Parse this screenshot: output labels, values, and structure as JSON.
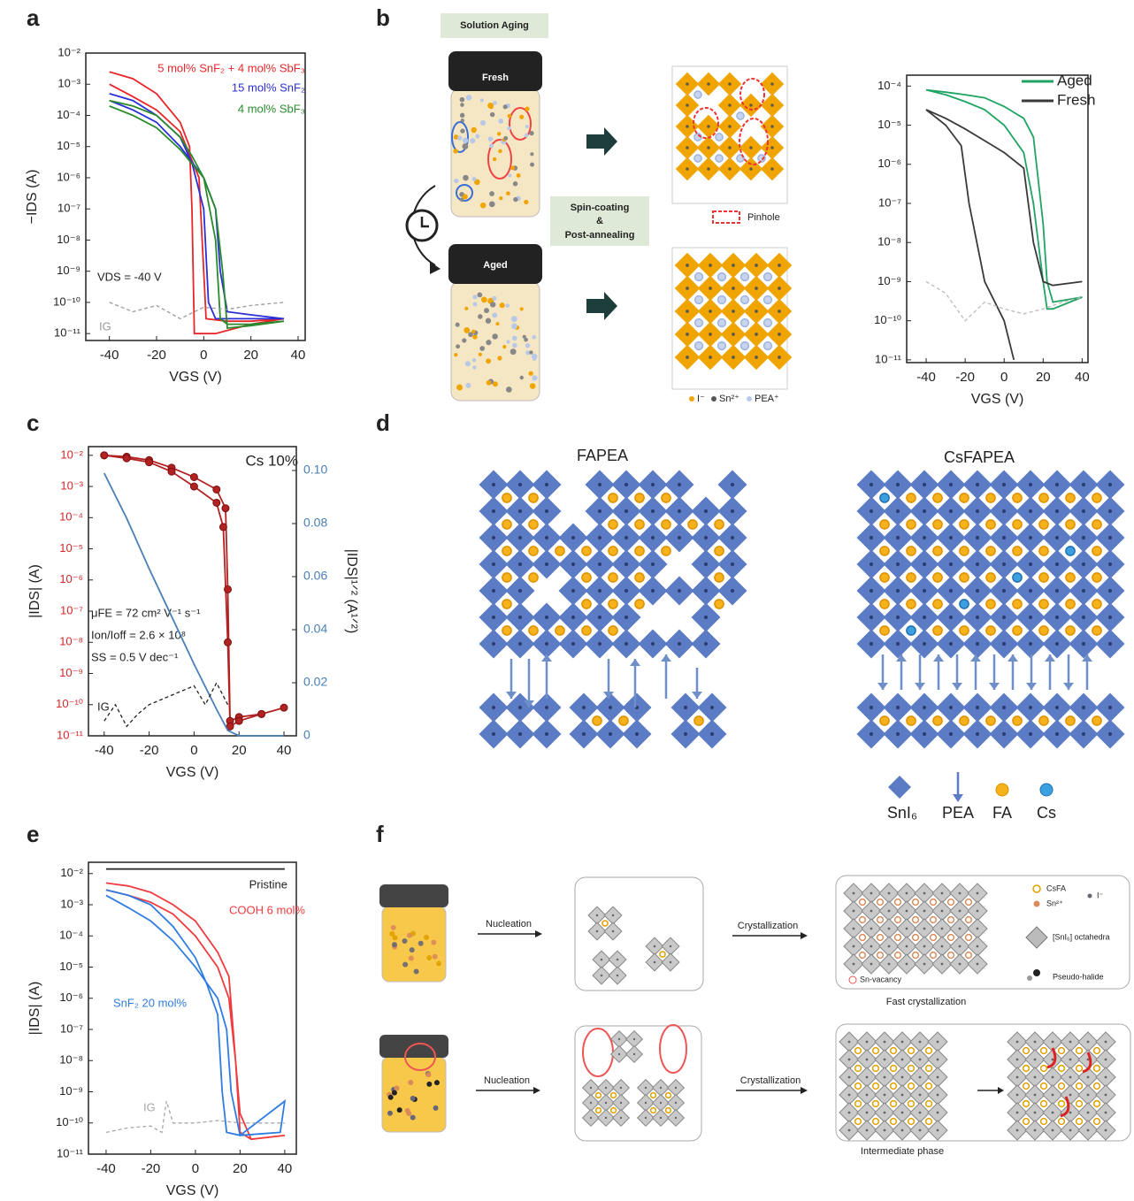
{
  "panels": [
    "a",
    "b",
    "c",
    "d",
    "e",
    "f"
  ],
  "chart_data": [
    {
      "type": "line",
      "log_y": true,
      "xlabel": "VGS (V)",
      "ylabel": "−IDS (A)",
      "xlim": [
        -50,
        43
      ],
      "ylim": [
        6e-12,
        0.01
      ],
      "xticks": [
        -40,
        -20,
        0,
        20,
        40
      ],
      "yticks": [
        {
          "value": 1e-11,
          "label": "10⁻¹¹"
        },
        {
          "value": 1e-10,
          "label": "10⁻¹⁰"
        },
        {
          "value": 1e-09,
          "label": "10⁻⁹"
        },
        {
          "value": 1e-08,
          "label": "10⁻⁸"
        },
        {
          "value": 1e-07,
          "label": "10⁻⁷"
        },
        {
          "value": 1e-06,
          "label": "10⁻⁶"
        },
        {
          "value": 1e-05,
          "label": "10⁻⁵"
        },
        {
          "value": 0.0001,
          "label": "10⁻⁴"
        },
        {
          "value": 0.001,
          "label": "10⁻³"
        },
        {
          "value": 0.01,
          "label": "10⁻²"
        }
      ],
      "annotations": [
        "VDS = -40 V"
      ],
      "series": [
        {
          "name": "5 mol% SnF₂ + 4 mol% SbF₃",
          "color": "#e8262a",
          "x": [
            -40,
            -30,
            -20,
            -10,
            -6,
            -5,
            -4,
            5,
            20,
            34,
            20,
            10,
            1,
            0,
            -2,
            -10,
            -20,
            -30,
            -40
          ],
          "values": [
            0.0025,
            0.0015,
            0.0005,
            6e-05,
            1e-05,
            1e-07,
            1e-11,
            1e-11,
            2e-11,
            3e-11,
            2.5e-11,
            2.5e-11,
            3e-11,
            1e-09,
            1e-06,
            3e-05,
            0.00015,
            0.0004,
            0.001
          ]
        },
        {
          "name": "15 mol% SnF₂",
          "color": "#2b2fd6",
          "x": [
            -40,
            -30,
            -20,
            -10,
            -5,
            0,
            2,
            5,
            10,
            20,
            34,
            20,
            10,
            7,
            5,
            0,
            -10,
            -20,
            -30,
            -40
          ],
          "values": [
            0.0005,
            0.0003,
            0.0001,
            2e-05,
            3e-06,
            1e-07,
            1e-10,
            3e-11,
            3e-11,
            3e-11,
            3e-11,
            4e-11,
            5e-11,
            1e-09,
            1e-07,
            1e-06,
            1e-05,
            6e-05,
            0.00015,
            0.0003
          ]
        },
        {
          "name": "4 mol% SbF₃",
          "color": "#2a8a2e",
          "x": [
            -40,
            -30,
            -20,
            -10,
            -5,
            0,
            5,
            7,
            10,
            20,
            34,
            20,
            10,
            8,
            5,
            0,
            -10,
            -20,
            -30,
            -40
          ],
          "values": [
            0.0003,
            0.0002,
            0.0001,
            2e-05,
            5e-06,
            1e-06,
            1e-08,
            3e-11,
            2e-11,
            2e-11,
            2.5e-11,
            1.8e-11,
            1.5e-11,
            1e-09,
            1e-07,
            1e-06,
            8e-06,
            4e-05,
            0.0001,
            0.0002
          ]
        },
        {
          "name": "IG",
          "color": "#9a9a9a",
          "dash": true,
          "x": [
            -40,
            -30,
            -20,
            -10,
            0,
            10,
            20,
            34
          ],
          "values": [
            1e-10,
            5e-11,
            8e-11,
            3e-11,
            7e-11,
            6e-11,
            8e-11,
            1e-10
          ]
        }
      ]
    },
    {
      "type": "line",
      "log_y": true,
      "xlabel": "VGS (V)",
      "legend_swatch": true,
      "xlim": [
        -50,
        43
      ],
      "ylim": [
        8.5e-12,
        0.00019
      ],
      "xticks": [
        -40,
        -20,
        0,
        20,
        40
      ],
      "yticks": [
        {
          "value": 1e-11,
          "label": "10⁻¹¹"
        },
        {
          "value": 1e-10,
          "label": "10⁻¹⁰"
        },
        {
          "value": 1e-09,
          "label": "10⁻⁹"
        },
        {
          "value": 1e-08,
          "label": "10⁻⁸"
        },
        {
          "value": 1e-07,
          "label": "10⁻⁷"
        },
        {
          "value": 1e-06,
          "label": "10⁻⁶"
        },
        {
          "value": 1e-05,
          "label": "10⁻⁵"
        },
        {
          "value": 0.0001,
          "label": "10⁻⁴"
        }
      ],
      "series": [
        {
          "name": "Aged",
          "color": "#1fa463",
          "x": [
            -40,
            -30,
            -20,
            -10,
            0,
            10,
            15,
            20,
            22,
            25,
            40,
            25,
            22,
            20,
            15,
            10,
            0,
            -10,
            -20,
            -30,
            -40
          ],
          "values": [
            8e-05,
            7e-05,
            6e-05,
            5e-05,
            3e-05,
            1.5e-05,
            5e-06,
            3e-08,
            1e-09,
            3e-10,
            4e-10,
            2e-10,
            2e-10,
            1e-09,
            1e-07,
            2e-06,
            1e-05,
            2.5e-05,
            4e-05,
            6e-05,
            8e-05
          ]
        },
        {
          "name": "Fresh",
          "color": "#3a3a3a",
          "x": [
            5,
            0,
            -10,
            -18,
            -22,
            -30,
            -40,
            -30,
            -20,
            -10,
            0,
            10,
            15,
            20,
            25,
            40
          ],
          "values": [
            1e-11,
            1e-10,
            1e-09,
            1e-07,
            3e-06,
            1e-05,
            2.5e-05,
            1.5e-05,
            8e-06,
            4e-06,
            2e-06,
            8e-07,
            1e-08,
            1e-09,
            8e-10,
            1e-09
          ]
        },
        {
          "color": "#bbbbbb",
          "dash": true,
          "x": [
            -40,
            -30,
            -20,
            -10,
            0,
            10,
            20,
            30,
            40
          ],
          "values": [
            1e-09,
            5e-10,
            1e-10,
            3e-10,
            2e-10,
            1.5e-10,
            2e-10,
            3e-10,
            4e-10
          ]
        }
      ]
    },
    {
      "type": "line",
      "log_y": true,
      "xlabel": "VGS (V)",
      "ylabel": "|IDS| (A)",
      "y2label": "|IDS|¹ᐟ² (A¹ᐟ²)",
      "ytick_color": "#d62728",
      "y2tick_color": "#4a7fb5",
      "xlim": [
        -47,
        45.5
      ],
      "ylim": [
        1e-11,
        0.019
      ],
      "y2lim": [
        0,
        0.109
      ],
      "xticks": [
        -40,
        -20,
        0,
        20,
        40
      ],
      "yticks": [
        {
          "value": 1e-11,
          "label": "10⁻¹¹"
        },
        {
          "value": 1e-10,
          "label": "10⁻¹⁰"
        },
        {
          "value": 1e-09,
          "label": "10⁻⁹"
        },
        {
          "value": 1e-08,
          "label": "10⁻⁸"
        },
        {
          "value": 1e-07,
          "label": "10⁻⁷"
        },
        {
          "value": 1e-06,
          "label": "10⁻⁶"
        },
        {
          "value": 1e-05,
          "label": "10⁻⁵"
        },
        {
          "value": 0.0001,
          "label": "10⁻⁴"
        },
        {
          "value": 0.001,
          "label": "10⁻³"
        },
        {
          "value": 0.01,
          "label": "10⁻²"
        }
      ],
      "y2ticks": [
        0,
        0.02,
        0.04,
        0.06,
        0.08,
        {
          "value": 0.1,
          "label": "0.10"
        }
      ],
      "annotations": [
        "Cs 10%",
        "μFE = 72 cm² V⁻¹ s⁻¹",
        "Ion/Ioff = 2.6 × 10⁸",
        "SS = 0.5 V dec⁻¹"
      ],
      "series": [
        {
          "color": "#b22222",
          "markers": true,
          "x": [
            -40,
            -30,
            -20,
            -10,
            0,
            10,
            14,
            15,
            16,
            20,
            30,
            40,
            30,
            20,
            16,
            15,
            13,
            10,
            0,
            -10,
            -20,
            -30,
            -40
          ],
          "values": [
            0.01,
            0.009,
            0.007,
            0.004,
            0.002,
            0.0008,
            0.0002,
            5e-07,
            3e-11,
            4e-11,
            5e-11,
            8e-11,
            5e-11,
            3e-11,
            2e-11,
            1e-08,
            5e-05,
            0.0003,
            0.001,
            0.003,
            0.006,
            0.008,
            0.01
          ]
        },
        {
          "color": "#4a7fb5",
          "axis": "y2",
          "x": [
            -40,
            -30,
            -20,
            -10,
            0,
            10,
            15,
            20,
            40
          ],
          "values": [
            0.099,
            0.082,
            0.063,
            0.045,
            0.027,
            0.01,
            0.002,
            0,
            0
          ]
        },
        {
          "name": "IG",
          "color": "#222222",
          "dash": true,
          "x": [
            -40,
            -35,
            -30,
            -25,
            -20,
            -10,
            0,
            5,
            10,
            15
          ],
          "values": [
            3e-11,
            1e-10,
            2e-11,
            5e-11,
            1e-10,
            2e-10,
            4e-10,
            1e-10,
            5e-10,
            1e-10
          ]
        }
      ]
    },
    {
      "type": "line",
      "log_y": true,
      "xlabel": "VGS (V)",
      "ylabel": "|IDS| (A)",
      "xlim": [
        -47.9,
        45.2
      ],
      "ylim": [
        1e-11,
        0.023
      ],
      "xticks": [
        -40,
        -20,
        0,
        20,
        40
      ],
      "yticks": [
        {
          "value": 1e-11,
          "label": "10⁻¹¹"
        },
        {
          "value": 1e-10,
          "label": "10⁻¹⁰"
        },
        {
          "value": 1e-09,
          "label": "10⁻⁹"
        },
        {
          "value": 1e-08,
          "label": "10⁻⁸"
        },
        {
          "value": 1e-07,
          "label": "10⁻⁷"
        },
        {
          "value": 1e-06,
          "label": "10⁻⁶"
        },
        {
          "value": 1e-05,
          "label": "10⁻⁵"
        },
        {
          "value": 0.0001,
          "label": "10⁻⁴"
        },
        {
          "value": 0.001,
          "label": "10⁻³"
        },
        {
          "value": 0.01,
          "label": "10⁻²"
        }
      ],
      "series": [
        {
          "name": "Pristine",
          "color": "#222222",
          "x": [
            -40,
            40
          ],
          "values": [
            0.014,
            0.014
          ]
        },
        {
          "name": "COOH 6 mol%",
          "color": "#ef3b3f",
          "x": [
            -40,
            -30,
            -20,
            -10,
            0,
            10,
            15,
            18,
            20,
            25,
            40,
            25,
            20,
            18,
            15,
            10,
            0,
            -10,
            -20,
            -30,
            -40
          ],
          "values": [
            0.005,
            0.004,
            0.0025,
            0.001,
            0.0003,
            3e-05,
            5e-06,
            1e-08,
            5e-11,
            3e-11,
            4e-11,
            3e-11,
            2e-10,
            1e-08,
            1e-06,
            1e-05,
            0.0001,
            0.0005,
            0.0012,
            0.002,
            0.003
          ]
        },
        {
          "name": "SnF₂ 20 mol%",
          "color": "#2f7de1",
          "x": [
            -40,
            -30,
            -20,
            -10,
            0,
            5,
            10,
            12,
            14,
            20,
            38,
            40,
            20,
            16,
            14,
            10,
            0,
            -10,
            -20,
            -30,
            -40
          ],
          "values": [
            0.003,
            0.002,
            0.001,
            0.0002,
            2e-05,
            3e-06,
            3e-07,
            1e-09,
            5e-11,
            4e-11,
            5e-11,
            5e-10,
            4e-11,
            1e-09,
            1e-07,
            1e-06,
            1e-05,
            7e-05,
            0.0003,
            0.0008,
            0.002
          ]
        },
        {
          "name": "IG",
          "color": "#a8a8a8",
          "dash": true,
          "x": [
            -40,
            -30,
            -20,
            -15,
            -13,
            -10,
            0,
            10,
            20,
            40
          ],
          "values": [
            5e-11,
            7e-11,
            8e-11,
            5e-11,
            5e-10,
            1e-10,
            1e-10,
            1.2e-10,
            1e-10,
            1e-10
          ]
        }
      ]
    }
  ],
  "diagram_b": {
    "title": "Solution Aging",
    "jar_fresh": "Fresh",
    "jar_aged": "Aged",
    "process": [
      "Spin-coating",
      "&",
      "Post-annealing"
    ],
    "pinhole": "Pinhole",
    "legend": [
      "I⁻",
      "Sn²⁺",
      "PEA⁺"
    ]
  },
  "diagram_d": {
    "left_title": "FAPEA",
    "right_title": "CsFAPEA",
    "legend": [
      "SnI₆",
      "PEA",
      "FA",
      "Cs"
    ]
  },
  "diagram_f": {
    "step1": "Nucleation",
    "step2": "Crystallization",
    "step3": "Nucleation",
    "step4": "Crystallization",
    "caption_top": "Fast crystallization",
    "caption_bottom": "Intermediate phase",
    "legend": [
      "CsFA",
      "Sn²⁺",
      "I⁻",
      "[SnI₆] octahedra",
      "Pseudo-halide",
      "Sn-vacancy"
    ]
  }
}
